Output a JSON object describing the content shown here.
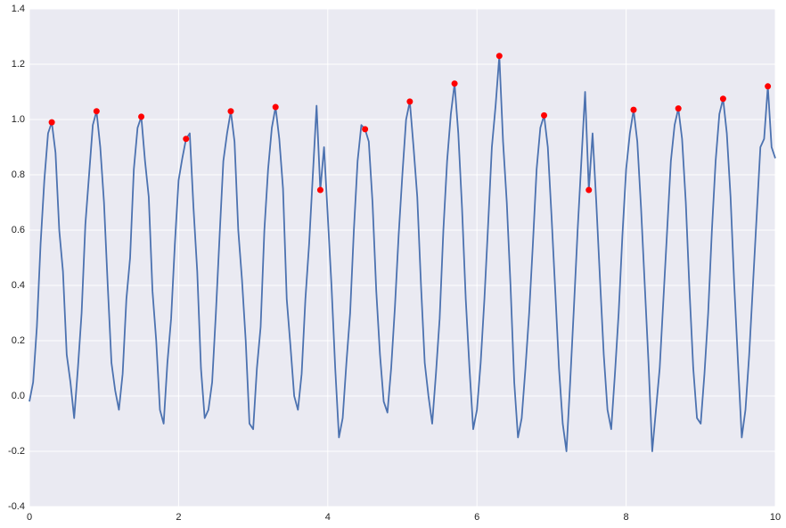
{
  "chart_data": {
    "type": "line",
    "xlim": [
      0,
      10
    ],
    "xticks": [
      0,
      2,
      4,
      6,
      8,
      10
    ],
    "ylim": [
      -0.4,
      1.4
    ],
    "yticks": [
      {
        "value": -0.4,
        "label": "-0.4"
      },
      {
        "value": -0.2,
        "label": "-0.2"
      },
      {
        "value": 0,
        "label": "0.0"
      },
      {
        "value": 0.2,
        "label": "0.2"
      },
      {
        "value": 0.4,
        "label": "0.4"
      },
      {
        "value": 0.6,
        "label": "0.6"
      },
      {
        "value": 0.8,
        "label": "0.8"
      },
      {
        "value": 1,
        "label": "1.0"
      },
      {
        "value": 1.2,
        "label": "1.2"
      },
      {
        "value": 1.4,
        "label": "1.4"
      }
    ],
    "grid": true,
    "series": [
      {
        "color": "#4c72b0",
        "style": "line",
        "x": [
          0,
          0.05,
          0.1,
          0.15,
          0.2,
          0.25,
          0.3,
          0.35,
          0.4,
          0.45,
          0.5,
          0.55,
          0.6,
          0.65,
          0.7,
          0.75,
          0.8,
          0.85,
          0.9,
          0.95,
          1,
          1.05,
          1.1,
          1.15,
          1.2,
          1.25,
          1.3,
          1.35,
          1.4,
          1.45,
          1.5,
          1.55,
          1.6,
          1.65,
          1.7,
          1.75,
          1.8,
          1.85,
          1.9,
          1.95,
          2,
          2.05,
          2.1,
          2.15,
          2.2,
          2.25,
          2.3,
          2.35,
          2.4,
          2.45,
          2.5,
          2.55,
          2.6,
          2.65,
          2.7,
          2.75,
          2.8,
          2.85,
          2.9,
          2.95,
          3,
          3.05,
          3.1,
          3.15,
          3.2,
          3.25,
          3.3,
          3.35,
          3.4,
          3.45,
          3.5,
          3.55,
          3.6,
          3.65,
          3.7,
          3.75,
          3.8,
          3.85,
          3.9,
          3.95,
          4,
          4.05,
          4.1,
          4.15,
          4.2,
          4.25,
          4.3,
          4.35,
          4.4,
          4.45,
          4.5,
          4.55,
          4.6,
          4.65,
          4.7,
          4.75,
          4.8,
          4.85,
          4.9,
          4.95,
          5,
          5.05,
          5.1,
          5.15,
          5.2,
          5.25,
          5.3,
          5.35,
          5.4,
          5.45,
          5.5,
          5.55,
          5.6,
          5.65,
          5.7,
          5.75,
          5.8,
          5.85,
          5.9,
          5.95,
          6,
          6.05,
          6.1,
          6.15,
          6.2,
          6.25,
          6.3,
          6.35,
          6.4,
          6.45,
          6.5,
          6.55,
          6.6,
          6.65,
          6.7,
          6.75,
          6.8,
          6.85,
          6.9,
          6.95,
          7,
          7.05,
          7.1,
          7.15,
          7.2,
          7.25,
          7.3,
          7.35,
          7.4,
          7.45,
          7.5,
          7.55,
          7.6,
          7.65,
          7.7,
          7.75,
          7.8,
          7.85,
          7.9,
          7.95,
          8,
          8.05,
          8.1,
          8.15,
          8.2,
          8.25,
          8.3,
          8.35,
          8.4,
          8.45,
          8.5,
          8.55,
          8.6,
          8.65,
          8.7,
          8.75,
          8.8,
          8.85,
          8.9,
          8.95,
          9,
          9.05,
          9.1,
          9.15,
          9.2,
          9.25,
          9.3,
          9.35,
          9.4,
          9.45,
          9.5,
          9.55,
          9.6,
          9.65,
          9.7,
          9.75,
          9.8,
          9.85,
          9.9,
          9.95,
          10
        ],
        "values": [
          -0.02,
          0.05,
          0.25,
          0.55,
          0.78,
          0.95,
          0.99,
          0.88,
          0.6,
          0.45,
          0.15,
          0.05,
          -0.08,
          0.1,
          0.3,
          0.62,
          0.8,
          0.98,
          1.03,
          0.9,
          0.7,
          0.4,
          0.12,
          0.02,
          -0.05,
          0.08,
          0.35,
          0.5,
          0.82,
          0.97,
          1.01,
          0.85,
          0.72,
          0.38,
          0.2,
          -0.05,
          -0.1,
          0.12,
          0.28,
          0.55,
          0.78,
          0.86,
          0.93,
          0.95,
          0.68,
          0.45,
          0.1,
          -0.08,
          -0.05,
          0.05,
          0.3,
          0.58,
          0.85,
          0.95,
          1.03,
          0.92,
          0.6,
          0.42,
          0.2,
          -0.1,
          -0.12,
          0.1,
          0.25,
          0.6,
          0.82,
          0.97,
          1.045,
          0.93,
          0.75,
          0.35,
          0.18,
          0,
          -0.05,
          0.08,
          0.35,
          0.55,
          0.8,
          1.05,
          0.745,
          0.9,
          0.65,
          0.4,
          0.1,
          -0.15,
          -0.08,
          0.12,
          0.3,
          0.6,
          0.85,
          0.98,
          0.965,
          0.92,
          0.7,
          0.38,
          0.15,
          -0.02,
          -0.06,
          0.1,
          0.32,
          0.58,
          0.8,
          1,
          1.065,
          0.9,
          0.72,
          0.4,
          0.12,
          0,
          -0.1,
          0.08,
          0.28,
          0.6,
          0.85,
          1.02,
          1.13,
          0.95,
          0.68,
          0.35,
          0.1,
          -0.12,
          -0.05,
          0.12,
          0.35,
          0.62,
          0.9,
          1.05,
          1.23,
          0.92,
          0.7,
          0.4,
          0.05,
          -0.15,
          -0.08,
          0.1,
          0.3,
          0.55,
          0.82,
          0.97,
          1.015,
          0.9,
          0.65,
          0.38,
          0.1,
          -0.1,
          -0.2,
          0.05,
          0.32,
          0.6,
          0.85,
          1.1,
          0.745,
          0.95,
          0.7,
          0.42,
          0.15,
          -0.05,
          -0.12,
          0.08,
          0.3,
          0.58,
          0.82,
          0.95,
          1.035,
          0.92,
          0.68,
          0.4,
          0.12,
          -0.2,
          -0.05,
          0.1,
          0.35,
          0.6,
          0.85,
          0.98,
          1.04,
          0.93,
          0.7,
          0.38,
          0.1,
          -0.08,
          -0.1,
          0.08,
          0.3,
          0.6,
          0.85,
          1.02,
          1.075,
          0.95,
          0.72,
          0.4,
          0.12,
          -0.15,
          -0.05,
          0.15,
          0.4,
          0.65,
          0.9,
          0.93,
          1.12,
          0.9,
          0.86
        ]
      },
      {
        "color": "#ff0000",
        "style": "markers",
        "x": [
          0.3,
          0.9,
          1.5,
          2.1,
          2.7,
          3.3,
          3.9,
          4.5,
          5.1,
          5.7,
          6.3,
          6.9,
          7.5,
          8.1,
          8.7,
          9.3,
          9.9
        ],
        "values": [
          0.99,
          1.03,
          1.01,
          0.93,
          1.03,
          1.045,
          0.745,
          0.965,
          1.065,
          1.13,
          1.23,
          1.015,
          0.745,
          1.035,
          1.04,
          1.075,
          1.12
        ]
      }
    ]
  }
}
